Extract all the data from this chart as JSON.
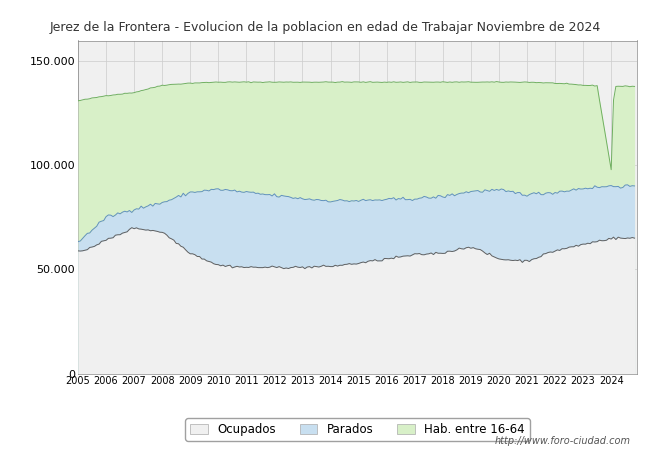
{
  "title": "Jerez de la Frontera - Evolucion de la poblacion en edad de Trabajar Noviembre de 2024",
  "title_color": "#333333",
  "title_bg": "#ffffff",
  "years": [
    2005,
    2006,
    2007,
    2008,
    2009,
    2010,
    2011,
    2012,
    2013,
    2014,
    2015,
    2016,
    2017,
    2018,
    2019,
    2020,
    2021,
    2022,
    2023,
    2024
  ],
  "hab_16_64_annual": [
    131000,
    133500,
    135000,
    138500,
    139500,
    140000,
    140000,
    140000,
    140000,
    140000,
    140000,
    140000,
    140000,
    140000,
    140000,
    140000,
    140000,
    139500,
    138500,
    138000
  ],
  "parados_annual": [
    63000,
    75000,
    79000,
    82000,
    87000,
    88500,
    87000,
    85500,
    84000,
    83000,
    83000,
    83500,
    84000,
    85000,
    87500,
    88000,
    86000,
    87000,
    89000,
    90000
  ],
  "ocupados_annual": [
    58000,
    64000,
    70000,
    68000,
    58000,
    52000,
    51000,
    51000,
    51000,
    51500,
    53000,
    55000,
    57000,
    58000,
    61000,
    55000,
    54000,
    59000,
    62000,
    65000
  ],
  "color_hab": "#d8f0c8",
  "color_parados": "#c8dff0",
  "color_ocupados": "#f0f0f0",
  "color_hab_line": "#70b060",
  "color_parados_line": "#6090c0",
  "color_ocupados_line": "#606060",
  "plot_bg": "#f0f0f0",
  "ylim": [
    0,
    160000
  ],
  "yticks": [
    0,
    50000,
    100000,
    150000
  ],
  "ytick_labels": [
    "0",
    "50.000",
    "100.000",
    "150.000"
  ],
  "footer_text": "http://www.foro-ciudad.com",
  "legend_labels": [
    "Ocupados",
    "Parados",
    "Hab. entre 16-64"
  ],
  "watermark": "foro-ciudad.com"
}
